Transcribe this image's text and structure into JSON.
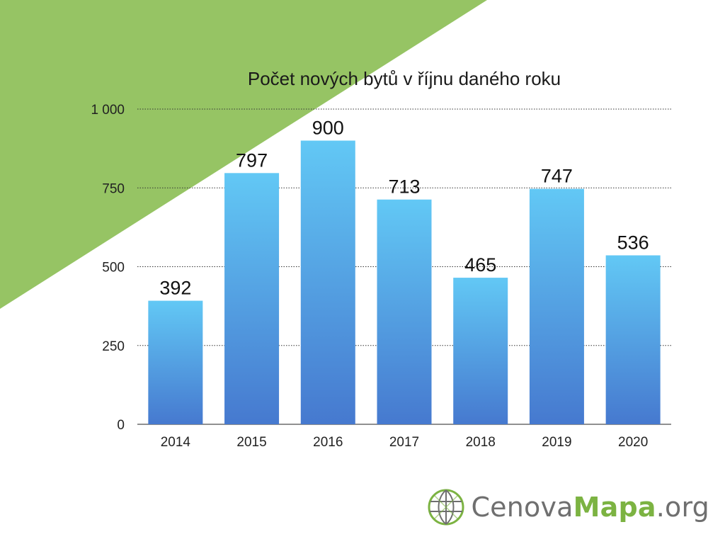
{
  "theme": {
    "corner_green": "#96c464",
    "bar_top": "#62c8f5",
    "bar_bottom": "#4679cf",
    "logo_green": "#7cb342",
    "logo_gray": "#6f6f6f"
  },
  "chart_data": {
    "type": "bar",
    "title": "Počet nových bytů v říjnu daného roku",
    "xlabel": "",
    "ylabel": "",
    "categories": [
      "2014",
      "2015",
      "2016",
      "2017",
      "2018",
      "2019",
      "2020"
    ],
    "values": [
      392,
      797,
      900,
      713,
      465,
      747,
      536
    ],
    "value_labels": [
      "392",
      "797",
      "900",
      "713",
      "465",
      "747",
      "536"
    ],
    "ylim": [
      0,
      1000
    ],
    "yticks": [
      0,
      250,
      500,
      750,
      1000
    ],
    "ytick_labels": [
      "0",
      "250",
      "500",
      "750",
      "1 000"
    ],
    "grid": true,
    "grid_style": "dotted",
    "legend": "none"
  },
  "logo": {
    "icon": "globe-grid-icon",
    "text_part1": "Cenova",
    "text_part2": "Mapa",
    "text_part3": ".org"
  }
}
